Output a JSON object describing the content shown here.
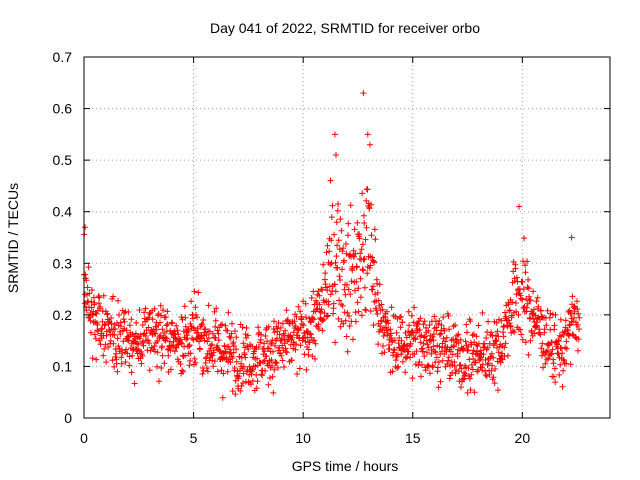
{
  "chart_data": {
    "type": "scatter",
    "title": "Day 041 of 2022, SRMTID for receiver orbo",
    "xlabel": "GPS time / hours",
    "ylabel": "SRMTID / TECUs",
    "xlim": [
      0,
      24
    ],
    "ylim": [
      0,
      0.7
    ],
    "grid": true,
    "marker": "+",
    "x_ticks": [
      {
        "value": 0,
        "label": "0"
      },
      {
        "value": 5,
        "label": "5"
      },
      {
        "value": 10,
        "label": "10"
      },
      {
        "value": 15,
        "label": "15"
      },
      {
        "value": 20,
        "label": "20"
      }
    ],
    "y_ticks": [
      {
        "value": 0,
        "label": "0"
      },
      {
        "value": 0.1,
        "label": "0.1"
      },
      {
        "value": 0.2,
        "label": "0.2"
      },
      {
        "value": 0.3,
        "label": "0.3"
      },
      {
        "value": 0.4,
        "label": "0.4"
      },
      {
        "value": 0.5,
        "label": "0.5"
      },
      {
        "value": 0.6,
        "label": "0.6"
      },
      {
        "value": 0.7,
        "label": "0.7"
      }
    ],
    "series": [
      {
        "name": "SRMTID",
        "color": "#ff0000",
        "x_range": [
          0,
          22.6
        ],
        "profile": [
          [
            0.0,
            0.3
          ],
          [
            0.1,
            0.24
          ],
          [
            0.5,
            0.18
          ],
          [
            1.0,
            0.18
          ],
          [
            1.5,
            0.15
          ],
          [
            2.5,
            0.14
          ],
          [
            3.0,
            0.17
          ],
          [
            4.0,
            0.15
          ],
          [
            5.0,
            0.16
          ],
          [
            6.0,
            0.14
          ],
          [
            7.0,
            0.12
          ],
          [
            8.0,
            0.12
          ],
          [
            9.0,
            0.14
          ],
          [
            10.0,
            0.16
          ],
          [
            10.8,
            0.2
          ],
          [
            11.2,
            0.28
          ],
          [
            11.6,
            0.32
          ],
          [
            12.0,
            0.26
          ],
          [
            12.6,
            0.3
          ],
          [
            13.0,
            0.34
          ],
          [
            13.4,
            0.22
          ],
          [
            14.0,
            0.14
          ],
          [
            15.0,
            0.15
          ],
          [
            16.0,
            0.15
          ],
          [
            17.0,
            0.12
          ],
          [
            18.0,
            0.12
          ],
          [
            19.0,
            0.14
          ],
          [
            19.6,
            0.23
          ],
          [
            20.0,
            0.24
          ],
          [
            20.5,
            0.2
          ],
          [
            21.0,
            0.16
          ],
          [
            21.5,
            0.13
          ],
          [
            22.0,
            0.14
          ],
          [
            22.3,
            0.2
          ],
          [
            22.6,
            0.16
          ]
        ],
        "peaks": [
          {
            "x": 0.05,
            "y": 0.37
          },
          {
            "x": 11.45,
            "y": 0.55
          },
          {
            "x": 11.5,
            "y": 0.51
          },
          {
            "x": 12.75,
            "y": 0.63
          },
          {
            "x": 12.95,
            "y": 0.55
          },
          {
            "x": 13.05,
            "y": 0.53
          },
          {
            "x": 19.85,
            "y": 0.41
          },
          {
            "x": 22.25,
            "y": 0.35
          }
        ]
      }
    ]
  }
}
